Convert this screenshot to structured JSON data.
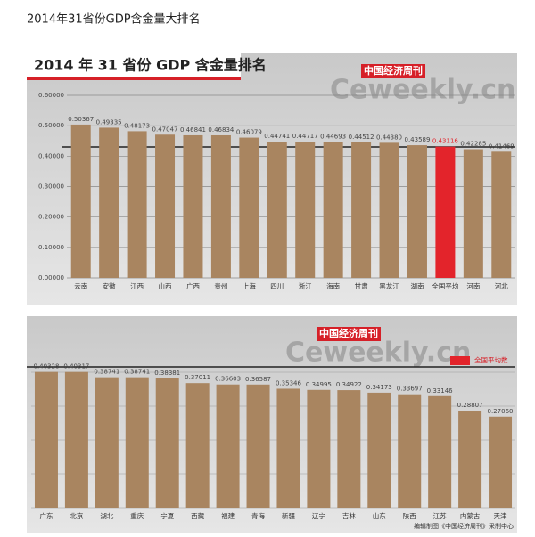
{
  "page_title": "2014年31省份GDP含金量大排名",
  "chart_data": [
    {
      "type": "bar",
      "title": "2014 年 31 省份 GDP 含金量排名",
      "watermark_cn": "中国经济周刊",
      "watermark": "Ceweekly.cn",
      "categories": [
        "云南",
        "安徽",
        "江西",
        "山西",
        "广西",
        "贵州",
        "上海",
        "四川",
        "浙江",
        "海南",
        "甘肃",
        "黑龙江",
        "湖南",
        "全国平均",
        "河南",
        "河北"
      ],
      "values": [
        0.50367,
        0.49335,
        0.48173,
        0.47047,
        0.46841,
        0.46834,
        0.46079,
        0.44741,
        0.44717,
        0.44693,
        0.44512,
        0.4438,
        0.43589,
        0.43116,
        0.42285,
        0.41469
      ],
      "value_labels": [
        "0.50367",
        "0.49335",
        "0.48173",
        "0.47047",
        "0.46841",
        "0.46834",
        "0.46079",
        "0.44741",
        "0.44717",
        "0.44693",
        "0.44512",
        "0.44380",
        "0.43589",
        "0.43116",
        "0.42285",
        "0.41469"
      ],
      "colors": [
        "#a98560",
        "#a98560",
        "#a98560",
        "#a98560",
        "#a98560",
        "#a98560",
        "#a98560",
        "#a98560",
        "#a98560",
        "#a98560",
        "#a98560",
        "#a98560",
        "#a98560",
        "#e3242b",
        "#a98560",
        "#a98560"
      ],
      "ylim": [
        0,
        0.6
      ],
      "yticks": [
        {
          "value": 0,
          "label": "0.00000"
        },
        {
          "value": 0.1,
          "label": "0.10000"
        },
        {
          "value": 0.2,
          "label": "0.20000"
        },
        {
          "value": 0.3,
          "label": "0.30000"
        },
        {
          "value": 0.4,
          "label": "0.40000"
        },
        {
          "value": 0.5,
          "label": "0.50000"
        },
        {
          "value": 0.6,
          "label": "0.60000"
        }
      ],
      "grid": true
    },
    {
      "type": "bar",
      "watermark_cn": "中国经济周刊",
      "watermark": "Ceweekly.cn",
      "legend": {
        "name": "全国平均数",
        "color": "#e3242b"
      },
      "note": "编辑制图《中国经济周刊》采制中心",
      "categories": [
        "广东",
        "北京",
        "湖北",
        "重庆",
        "宁夏",
        "西藏",
        "福建",
        "青海",
        "新疆",
        "辽宁",
        "吉林",
        "山东",
        "陕西",
        "江苏",
        "内蒙古",
        "天津"
      ],
      "values": [
        0.40328,
        0.40317,
        0.38741,
        0.38741,
        0.38381,
        0.37011,
        0.36603,
        0.36587,
        0.35346,
        0.34995,
        0.34922,
        0.34173,
        0.33697,
        0.33146,
        0.28807,
        0.2706
      ],
      "value_labels": [
        "0.40328",
        "0.40317",
        "0.38741",
        "0.38741",
        "0.38381",
        "0.37011",
        "0.36603",
        "0.36587",
        "0.35346",
        "0.34995",
        "0.34922",
        "0.34173",
        "0.33697",
        "0.33146",
        "0.28807",
        "0.27060"
      ],
      "color": "#a98560",
      "ylim": [
        0,
        0.45
      ]
    }
  ]
}
